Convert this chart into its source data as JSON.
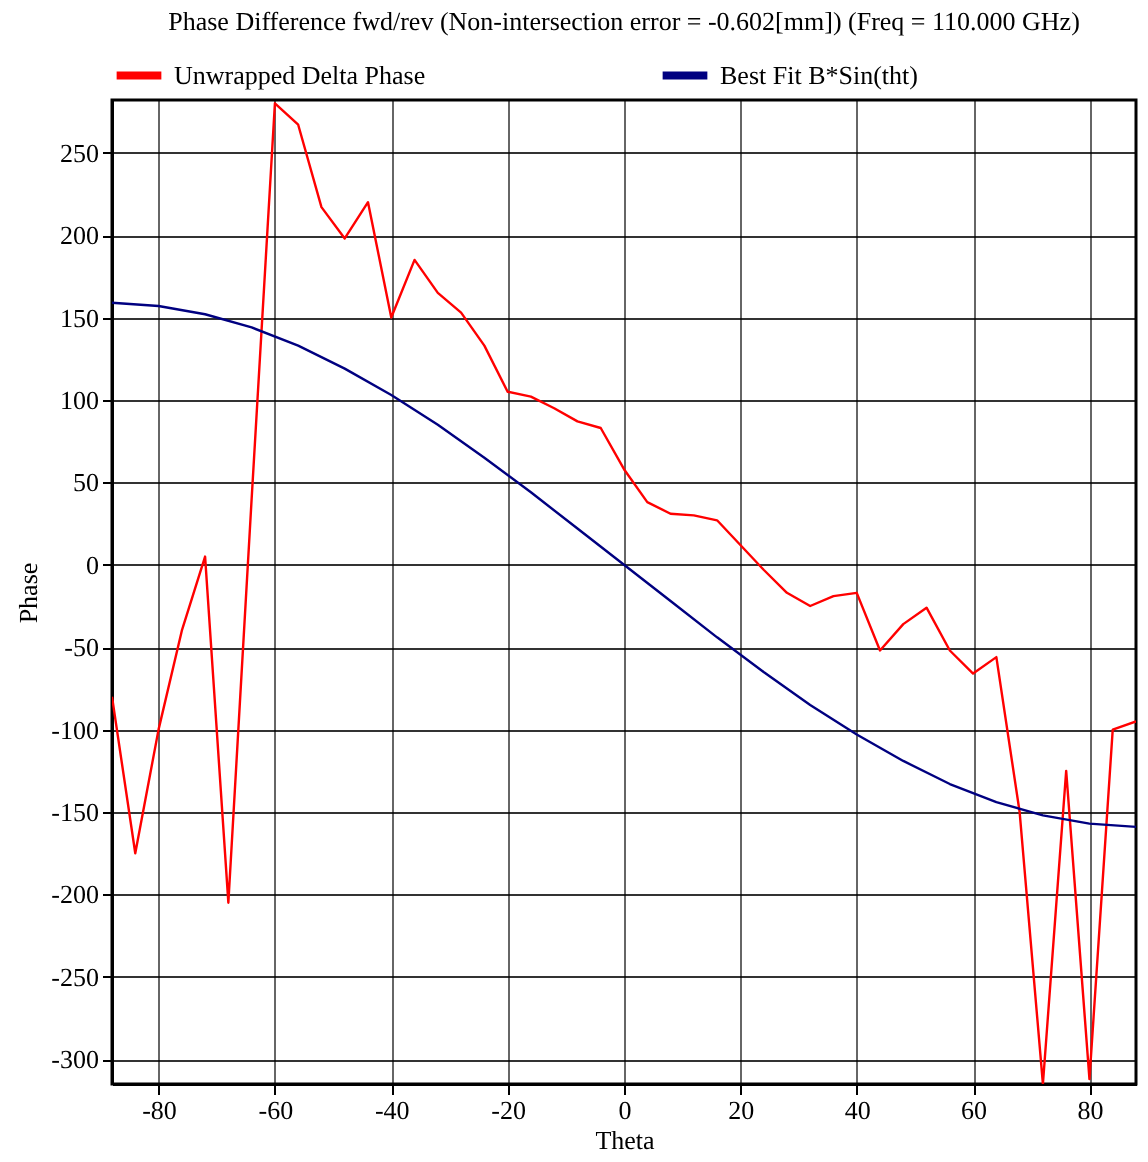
{
  "chart_data": {
    "type": "line",
    "title": "Phase Difference fwd/rev (Non-intersection error = -0.602[mm]) (Freq = 110.000 GHz)",
    "xlabel": "Theta",
    "ylabel": "Phase",
    "xlim": [
      -88,
      88
    ],
    "xticks": [
      -80,
      -60,
      -40,
      -20,
      0,
      20,
      40,
      60,
      80
    ],
    "ylim": [
      -315,
      282
    ],
    "yticks": [
      -300,
      -250,
      -200,
      -150,
      -100,
      -50,
      0,
      50,
      100,
      150,
      200,
      250
    ],
    "grid": true,
    "legend": "top",
    "line_style": "solid",
    "series": [
      {
        "name": "Unwrapped Delta Phase",
        "color": "#ff0000",
        "x": [
          -88,
          -84,
          -80,
          -76,
          -72,
          -68,
          -64,
          -60,
          -56,
          -52,
          -48,
          -44,
          -40,
          -36,
          -32,
          -28,
          -24,
          -20,
          -16,
          -12,
          -8,
          -4,
          0,
          4,
          8,
          12,
          16,
          20,
          24,
          28,
          32,
          36,
          40,
          44,
          48,
          52,
          56,
          60,
          64,
          68,
          72,
          76,
          80,
          84,
          88
        ],
        "values": [
          -80,
          -175,
          -100,
          -40,
          5,
          -205,
          40,
          280,
          267,
          217,
          198,
          220,
          150,
          185,
          165,
          153,
          133,
          105,
          102,
          95,
          87,
          83,
          58,
          38,
          31,
          30,
          27,
          12,
          -3,
          -17,
          -25,
          -19,
          -17,
          -52,
          -36,
          -26,
          -52,
          -66,
          -56,
          -150,
          -315,
          -125,
          -312,
          -100,
          -95
        ]
      },
      {
        "name": "Best Fit B*Sin(tht)",
        "color": "#000080",
        "x": [
          -88,
          -80,
          -72,
          -64,
          -56,
          -48,
          -40,
          -32,
          -24,
          -16,
          -8,
          0,
          8,
          16,
          24,
          32,
          40,
          48,
          56,
          64,
          72,
          80,
          88
        ],
        "values": [
          159,
          157,
          152,
          144,
          133,
          119,
          103,
          85,
          65,
          44,
          22,
          0,
          -22,
          -44,
          -65,
          -85,
          -103,
          -119,
          -133,
          -144,
          -152,
          -157,
          -159
        ]
      }
    ]
  }
}
